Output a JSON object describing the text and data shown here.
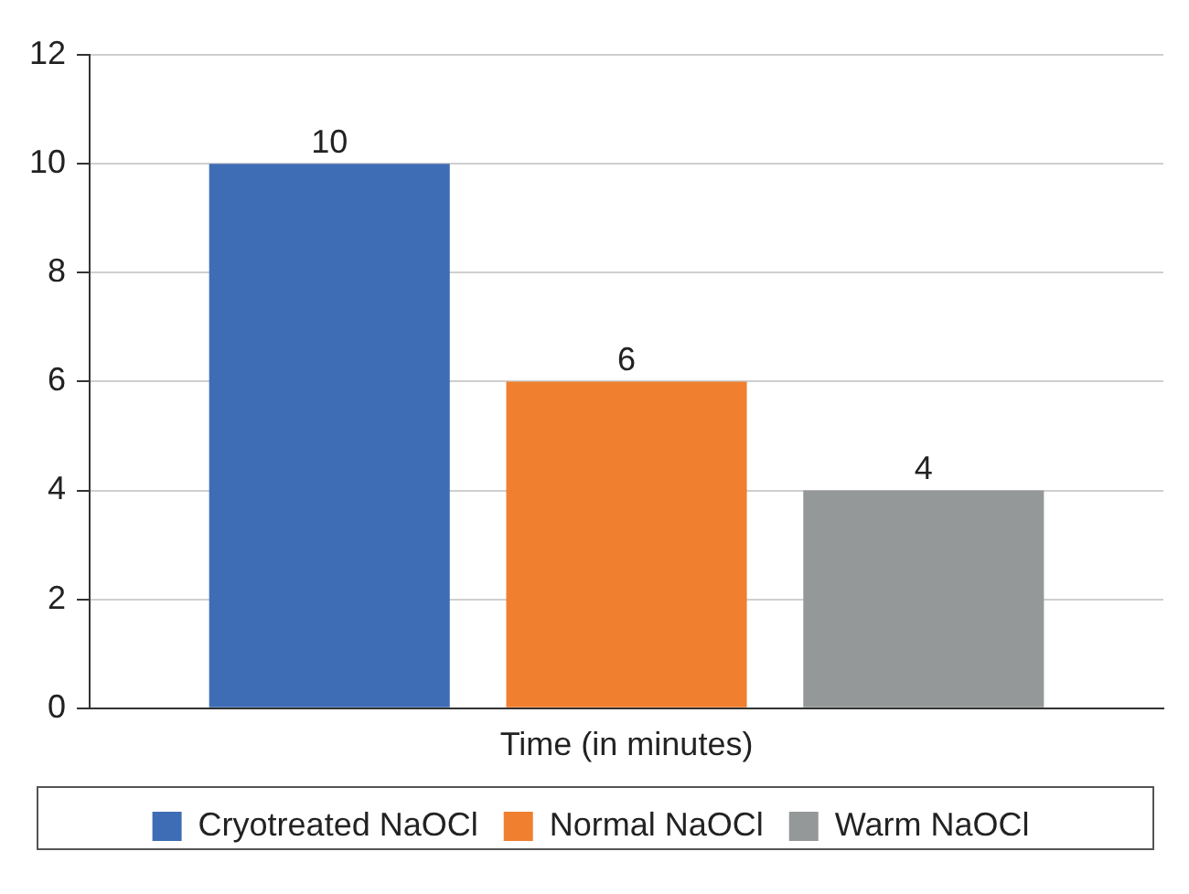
{
  "chart_data": {
    "type": "bar",
    "categories": [
      "Time (in minutes)"
    ],
    "series": [
      {
        "name": "Cryotreated NaOCl",
        "color": "#3f6db5",
        "values": [
          10
        ]
      },
      {
        "name": "Normal NaOCl",
        "color": "#f07f2f",
        "values": [
          6
        ]
      },
      {
        "name": "Warm NaOCl",
        "color": "#959899",
        "values": [
          4
        ]
      }
    ],
    "ylim": [
      0,
      12
    ],
    "yticks": [
      0,
      2,
      4,
      6,
      8,
      10,
      12
    ],
    "grid": "y",
    "legend": "bottom",
    "data_labels": true
  }
}
